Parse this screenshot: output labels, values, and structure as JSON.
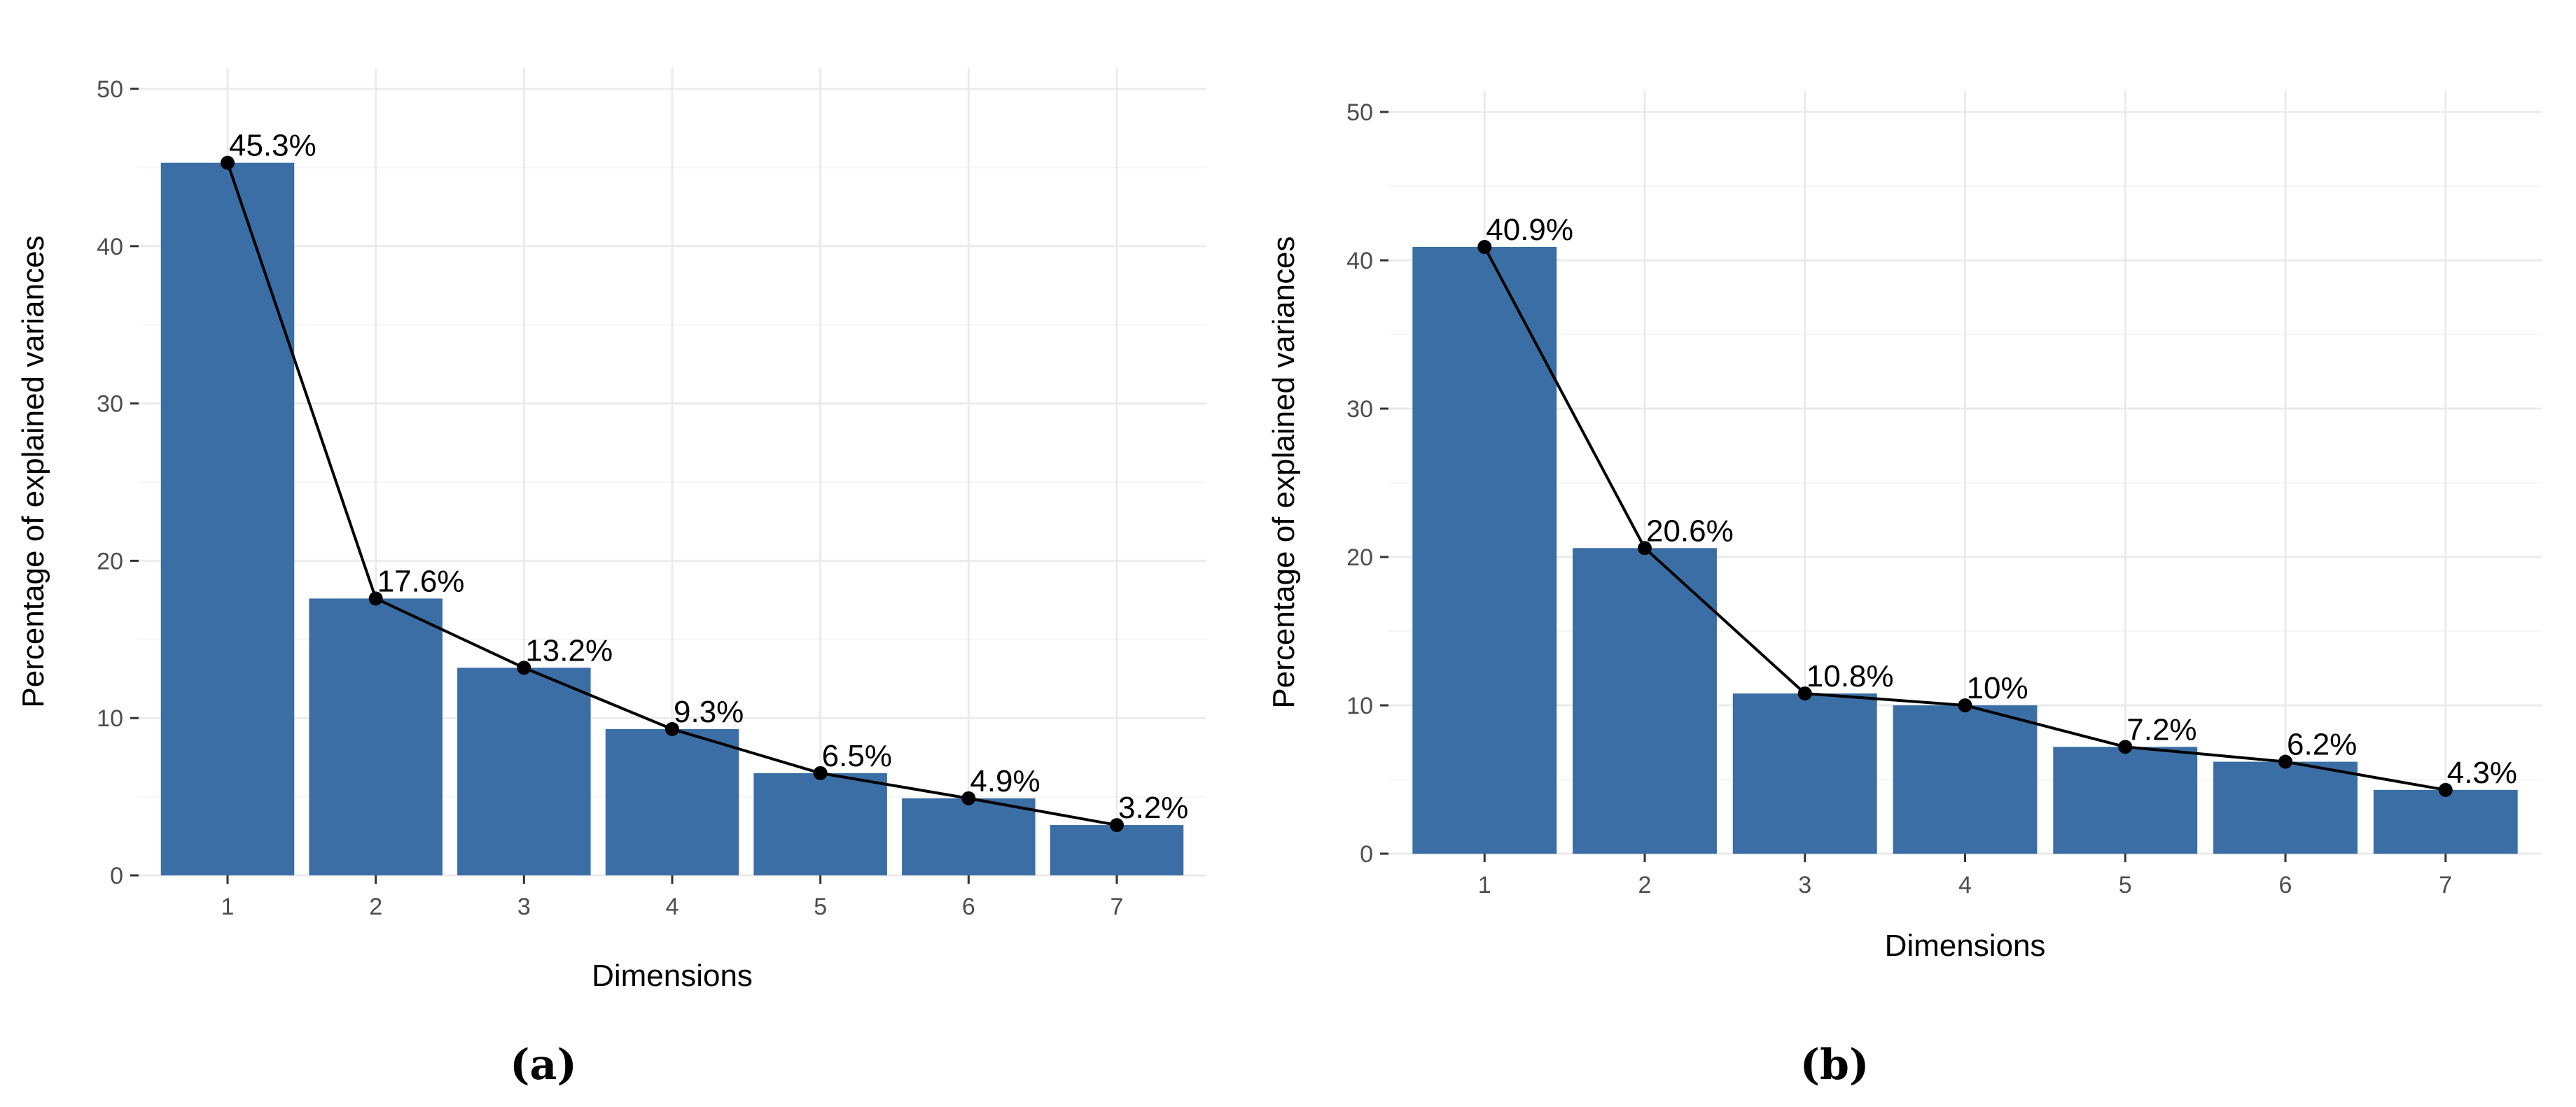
{
  "chart_data": [
    {
      "type": "bar",
      "panel_label": "(a)",
      "xlabel": "Dimensions",
      "ylabel": "Percentage of explained variances",
      "categories": [
        "1",
        "2",
        "3",
        "4",
        "5",
        "6",
        "7"
      ],
      "values": [
        45.3,
        17.6,
        13.2,
        9.3,
        6.5,
        4.9,
        3.2
      ],
      "value_labels": [
        "45.3%",
        "17.6%",
        "13.2%",
        "9.3%",
        "6.5%",
        "4.9%",
        "3.2%"
      ],
      "yticks": [
        0,
        10,
        20,
        30,
        40,
        50
      ],
      "ytick_labels": [
        "0",
        "10",
        "20",
        "30",
        "40",
        "50"
      ],
      "ylim": [
        0,
        50
      ],
      "bar_color": "#3a6ea5",
      "line_color": "#000000",
      "grid": true
    },
    {
      "type": "bar",
      "panel_label": "(b)",
      "xlabel": "Dimensions",
      "ylabel": "Percentage of explained variances",
      "categories": [
        "1",
        "2",
        "3",
        "4",
        "5",
        "6",
        "7"
      ],
      "values": [
        40.9,
        20.6,
        10.8,
        10.0,
        7.2,
        6.2,
        4.3
      ],
      "value_labels": [
        "40.9%",
        "20.6%",
        "10.8%",
        "10%",
        "7.2%",
        "6.2%",
        "4.3%"
      ],
      "yticks": [
        0,
        10,
        20,
        30,
        40,
        50
      ],
      "ytick_labels": [
        "0",
        "10",
        "20",
        "30",
        "40",
        "50"
      ],
      "ylim": [
        0,
        50
      ],
      "bar_color": "#3a6ea5",
      "line_color": "#000000",
      "grid": true
    }
  ]
}
